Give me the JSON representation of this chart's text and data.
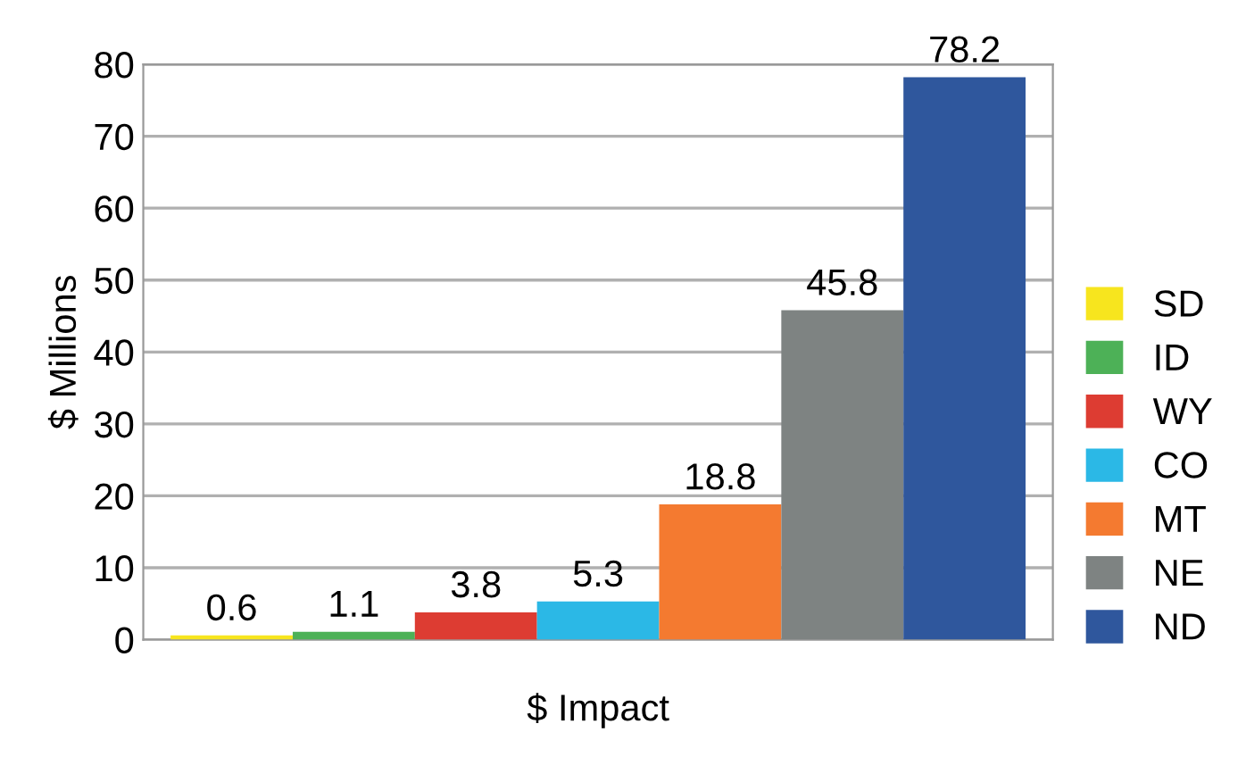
{
  "chart_data": {
    "type": "bar",
    "xlabel": "$ Impact",
    "ylabel": "$ Millions",
    "categories": [
      null
    ],
    "series": [
      {
        "name": "SD",
        "color": "#f7e51e",
        "values": [
          0.6
        ]
      },
      {
        "name": "ID",
        "color": "#4db157",
        "values": [
          1.1
        ]
      },
      {
        "name": "WY",
        "color": "#dd3c32",
        "values": [
          3.8
        ]
      },
      {
        "name": "CO",
        "color": "#2bb8e6",
        "values": [
          5.3
        ]
      },
      {
        "name": "MT",
        "color": "#f47a30",
        "values": [
          18.8
        ]
      },
      {
        "name": "NE",
        "color": "#7e8382",
        "values": [
          45.8
        ]
      },
      {
        "name": "ND",
        "color": "#2f579d",
        "values": [
          78.2
        ]
      }
    ],
    "ylim": [
      0,
      80
    ],
    "yticks": [
      0,
      10,
      20,
      30,
      40,
      50,
      60,
      70,
      80
    ],
    "grid": "y",
    "legend": "right",
    "data_labels": true
  }
}
